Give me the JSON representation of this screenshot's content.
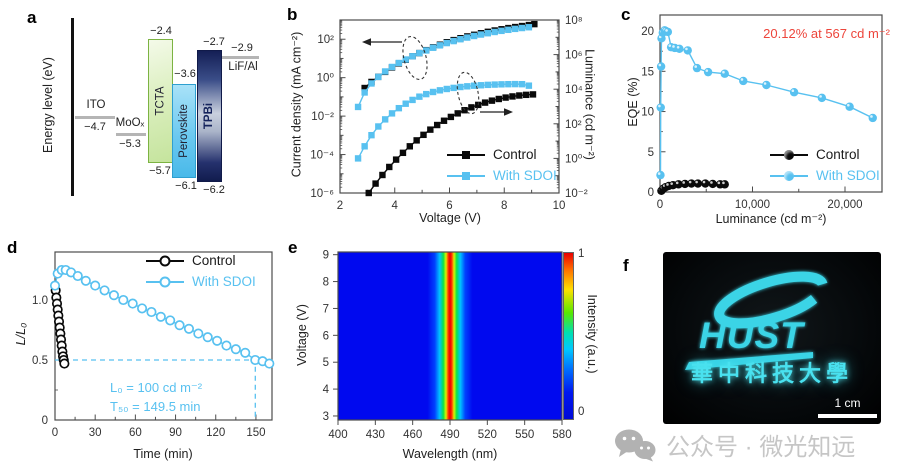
{
  "panels": {
    "a": "a",
    "b": "b",
    "c": "c",
    "d": "d",
    "e": "e",
    "f": "f"
  },
  "colors": {
    "sdoi_blue": "#58c1f0",
    "control_black": "#0a0a0a",
    "annotation_red": "#ed453b",
    "glow_cyan": "#3bd4e6"
  },
  "panel_a": {
    "axis_label": "Energy level (eV)",
    "ito": {
      "label": "ITO",
      "value": "−4.7"
    },
    "moox": {
      "label": "MoOₓ",
      "value": "−5.3"
    },
    "tcta": {
      "label": "TCTA",
      "top": "−2.4",
      "bottom": "−5.7"
    },
    "perovskite": {
      "label": "Perovskite",
      "top": "−3.6",
      "bottom": "−6.1"
    },
    "tpbi": {
      "label": "TPBi",
      "top": "−2.7",
      "bottom": "−6.2"
    },
    "lifal": {
      "label": "LiF/Al",
      "value": "−2.9"
    }
  },
  "chart_data": [
    {
      "id": "b",
      "type": "line",
      "x_label": "Voltage (V)",
      "x_range": [
        2,
        10
      ],
      "x_ticks": [
        2,
        4,
        6,
        8,
        10
      ],
      "x_minor": [
        3,
        5,
        7,
        9
      ],
      "y_left": {
        "label": "Current density (mA cm⁻²)",
        "scale": "log",
        "range_exp": [
          -6,
          3
        ],
        "ticks": [
          {
            "exp": 2,
            "label": "10²"
          },
          {
            "exp": 0,
            "label": "10⁰"
          },
          {
            "exp": -2,
            "label": "10⁻²"
          },
          {
            "exp": -4,
            "label": "10⁻⁴"
          },
          {
            "exp": -6,
            "label": "10⁻⁶"
          }
        ]
      },
      "y_right": {
        "label": "Luminance (cd m⁻²)",
        "scale": "log",
        "range_exp": [
          -2,
          8
        ],
        "ticks": [
          {
            "exp": 8,
            "label": "10⁸"
          },
          {
            "exp": 6,
            "label": "10⁶"
          },
          {
            "exp": 4,
            "label": "10⁴"
          },
          {
            "exp": 2,
            "label": "10²"
          },
          {
            "exp": 0,
            "label": "10⁰"
          },
          {
            "exp": -2,
            "label": "10⁻²"
          }
        ]
      },
      "series": [
        {
          "key": "control-current",
          "name": "Control",
          "axis": "left",
          "color": "#0a0a0a",
          "marker": "square",
          "x": [
            2.9,
            3.15,
            3.4,
            3.65,
            3.9,
            4.15,
            4.4,
            4.65,
            4.9,
            5.15,
            5.4,
            5.65,
            5.9,
            6.15,
            6.4,
            6.65,
            6.9,
            7.15,
            7.4,
            7.65,
            7.9,
            8.15,
            8.4,
            8.65,
            8.9,
            9.1
          ],
          "y": [
            0.29,
            0.6,
            1.1,
            2.0,
            3.4,
            5.5,
            8.5,
            13,
            19,
            27,
            38,
            52,
            70,
            90,
            113,
            140,
            170,
            205,
            243,
            285,
            330,
            380,
            430,
            485,
            545,
            610
          ]
        },
        {
          "key": "sdoi-current",
          "name": "With SDOI",
          "axis": "left",
          "color": "#58c1f0",
          "marker": "square",
          "x": [
            2.66,
            2.9,
            3.15,
            3.4,
            3.65,
            3.9,
            4.15,
            4.4,
            4.65,
            4.9,
            5.15,
            5.4,
            5.65,
            5.9,
            6.15,
            6.4,
            6.65,
            6.9,
            7.15,
            7.4,
            7.65,
            7.9,
            8.15,
            8.4,
            8.65,
            8.9
          ],
          "y": [
            0.03,
            0.17,
            0.5,
            1.1,
            2.1,
            3.6,
            5.8,
            8.8,
            13,
            19,
            26,
            36,
            48,
            63,
            80,
            100,
            122,
            147,
            175,
            205,
            238,
            272,
            308,
            345,
            382,
            420
          ]
        },
        {
          "key": "control-luminance",
          "name": "Control",
          "axis": "right",
          "color": "#0a0a0a",
          "marker": "square",
          "x": [
            3.05,
            3.3,
            3.55,
            3.8,
            4.05,
            4.3,
            4.55,
            4.8,
            5.05,
            5.3,
            5.55,
            5.8,
            6.05,
            6.3,
            6.55,
            6.8,
            7.05,
            7.3,
            7.55,
            7.8,
            8.05,
            8.3,
            8.55,
            8.8,
            9.05
          ],
          "y": [
            0.01,
            0.035,
            0.11,
            0.32,
            0.85,
            2.1,
            5,
            11,
            23,
            46,
            85,
            150,
            250,
            400,
            610,
            890,
            1240,
            1680,
            2180,
            2720,
            3280,
            3820,
            4320,
            4720,
            5000
          ]
        },
        {
          "key": "sdoi-luminance",
          "name": "With SDOI",
          "axis": "right",
          "color": "#58c1f0",
          "marker": "square",
          "x": [
            2.66,
            2.9,
            3.15,
            3.4,
            3.65,
            3.9,
            4.15,
            4.4,
            4.65,
            4.9,
            5.15,
            5.4,
            5.65,
            5.9,
            6.15,
            6.4,
            6.65,
            6.9,
            7.15,
            7.4,
            7.65,
            7.9,
            8.15,
            8.4,
            8.65,
            8.9
          ],
          "y": [
            1.0,
            5,
            22,
            70,
            180,
            400,
            800,
            1450,
            2400,
            3700,
            5200,
            6900,
            8600,
            10300,
            11900,
            13400,
            14700,
            15900,
            16900,
            17800,
            18500,
            19100,
            19500,
            19700,
            19500,
            16000
          ]
        }
      ],
      "legend": [
        {
          "label": "Control",
          "color": "#0a0a0a"
        },
        {
          "label": "With SDOI",
          "color": "#58c1f0"
        }
      ]
    },
    {
      "id": "c",
      "type": "line",
      "x_label": "Luminance (cd m⁻²)",
      "y_label": "EQE (%)",
      "x_range": [
        0,
        24000
      ],
      "x_ticks": [
        0,
        10000,
        20000
      ],
      "x_tick_labels": [
        "0",
        "10,000",
        "20,000"
      ],
      "x_minor": [
        5000,
        15000
      ],
      "y_range": [
        0,
        22
      ],
      "y_ticks": [
        0,
        5,
        10,
        15,
        20
      ],
      "y_minor": [
        2.5,
        7.5,
        12.5,
        17.5
      ],
      "annotation": {
        "text": "20.12% at 567 cd m⁻²",
        "color": "#ed453b"
      },
      "series": [
        {
          "key": "control-eqe",
          "name": "Control",
          "color": "#0a0a0a",
          "marker": "ball",
          "x": [
            150,
            350,
            600,
            950,
            1400,
            2000,
            2700,
            3400,
            4100,
            4900,
            5700,
            6500,
            7000
          ],
          "y": [
            0.15,
            0.4,
            0.6,
            0.75,
            0.85,
            0.95,
            1.0,
            1.05,
            1.05,
            1.05,
            1.0,
            0.95,
            0.95
          ]
        },
        {
          "key": "sdoi-eqe",
          "name": "With SDOI",
          "color": "#58c1f0",
          "marker": "ball",
          "x": [
            50,
            80,
            120,
            160,
            300,
            500,
            650,
            850,
            1200,
            1600,
            2100,
            3000,
            4000,
            5200,
            7000,
            9000,
            11500,
            14500,
            17500,
            20500,
            23000
          ],
          "y": [
            2.1,
            10.5,
            15.6,
            19.1,
            19.8,
            20.1,
            20.0,
            19.9,
            18.0,
            17.9,
            17.8,
            17.6,
            15.4,
            14.9,
            14.7,
            13.8,
            13.3,
            12.4,
            11.7,
            10.6,
            9.2
          ]
        }
      ],
      "legend": [
        {
          "label": "Control",
          "color": "#0a0a0a"
        },
        {
          "label": "With SDOI",
          "color": "#58c1f0"
        }
      ]
    },
    {
      "id": "d",
      "type": "line",
      "x_label": "Time (min)",
      "y_label": "L/L₀",
      "x_range": [
        0,
        162
      ],
      "x_ticks": [
        0,
        30,
        60,
        90,
        120,
        150
      ],
      "x_minor": [
        15,
        45,
        75,
        105,
        135
      ],
      "y_range": [
        0,
        1.4
      ],
      "y_ticks": [
        0,
        0.5,
        1.0
      ],
      "y_tick_labels": [
        "0",
        "0.5",
        "1.0"
      ],
      "y_minor": [
        0.25,
        0.75,
        1.25
      ],
      "guides": {
        "y": 0.5,
        "x": 149.5
      },
      "annotations": [
        {
          "text": "L₀ = 100 cd m⁻²"
        },
        {
          "text": "T₅₀ = 149.5 min"
        }
      ],
      "series": [
        {
          "key": "control-stability",
          "name": "Control",
          "color": "#0a0a0a",
          "marker": "ocircle",
          "x": [
            0.5,
            1,
            1.5,
            2,
            2.5,
            3,
            3.5,
            4,
            4.5,
            5,
            5.5,
            6,
            6.5,
            7
          ],
          "y": [
            1.08,
            1.02,
            0.97,
            0.92,
            0.87,
            0.82,
            0.77,
            0.72,
            0.67,
            0.62,
            0.57,
            0.53,
            0.5,
            0.47
          ]
        },
        {
          "key": "sdoi-stability",
          "name": "With SDOI",
          "color": "#58c1f0",
          "marker": "ocircle",
          "x": [
            0,
            2,
            5,
            8,
            12,
            17,
            23,
            30,
            37,
            44,
            51,
            58,
            65,
            72,
            79,
            86,
            93,
            100,
            107,
            114,
            121,
            128,
            135,
            142,
            149.5,
            155,
            160
          ],
          "y": [
            1.12,
            1.22,
            1.25,
            1.25,
            1.23,
            1.2,
            1.16,
            1.12,
            1.08,
            1.04,
            1.0,
            0.97,
            0.93,
            0.9,
            0.86,
            0.83,
            0.79,
            0.76,
            0.72,
            0.69,
            0.66,
            0.62,
            0.59,
            0.56,
            0.5,
            0.49,
            0.47
          ]
        }
      ],
      "legend": [
        {
          "label": "Control",
          "color": "#0a0a0a"
        },
        {
          "label": "With SDOI",
          "color": "#58c1f0"
        }
      ]
    },
    {
      "id": "e",
      "type": "heatmap",
      "x_label": "Wavelength (nm)",
      "x_range": [
        400,
        580
      ],
      "x_ticks": [
        400,
        430,
        460,
        490,
        520,
        550,
        580
      ],
      "y_label": "Voltage (V)",
      "y_range": [
        2.85,
        9.1
      ],
      "y_ticks": [
        3,
        4,
        5,
        6,
        7,
        8,
        9
      ],
      "colorbar": {
        "label": "Intensity (a.u.)",
        "max_label": "1",
        "min_label": "0"
      },
      "emission": {
        "peak_nm": 490,
        "fwhm_nm": 18,
        "note": "single EL band centered near 490 nm, stable from 3 V to 9 V"
      }
    }
  ],
  "panel_f": {
    "logo_text": "HUST",
    "university_name": "華中科技大學",
    "scale_bar_label": "1 cm"
  },
  "watermark": {
    "text": "公众号 · 微光知远"
  }
}
